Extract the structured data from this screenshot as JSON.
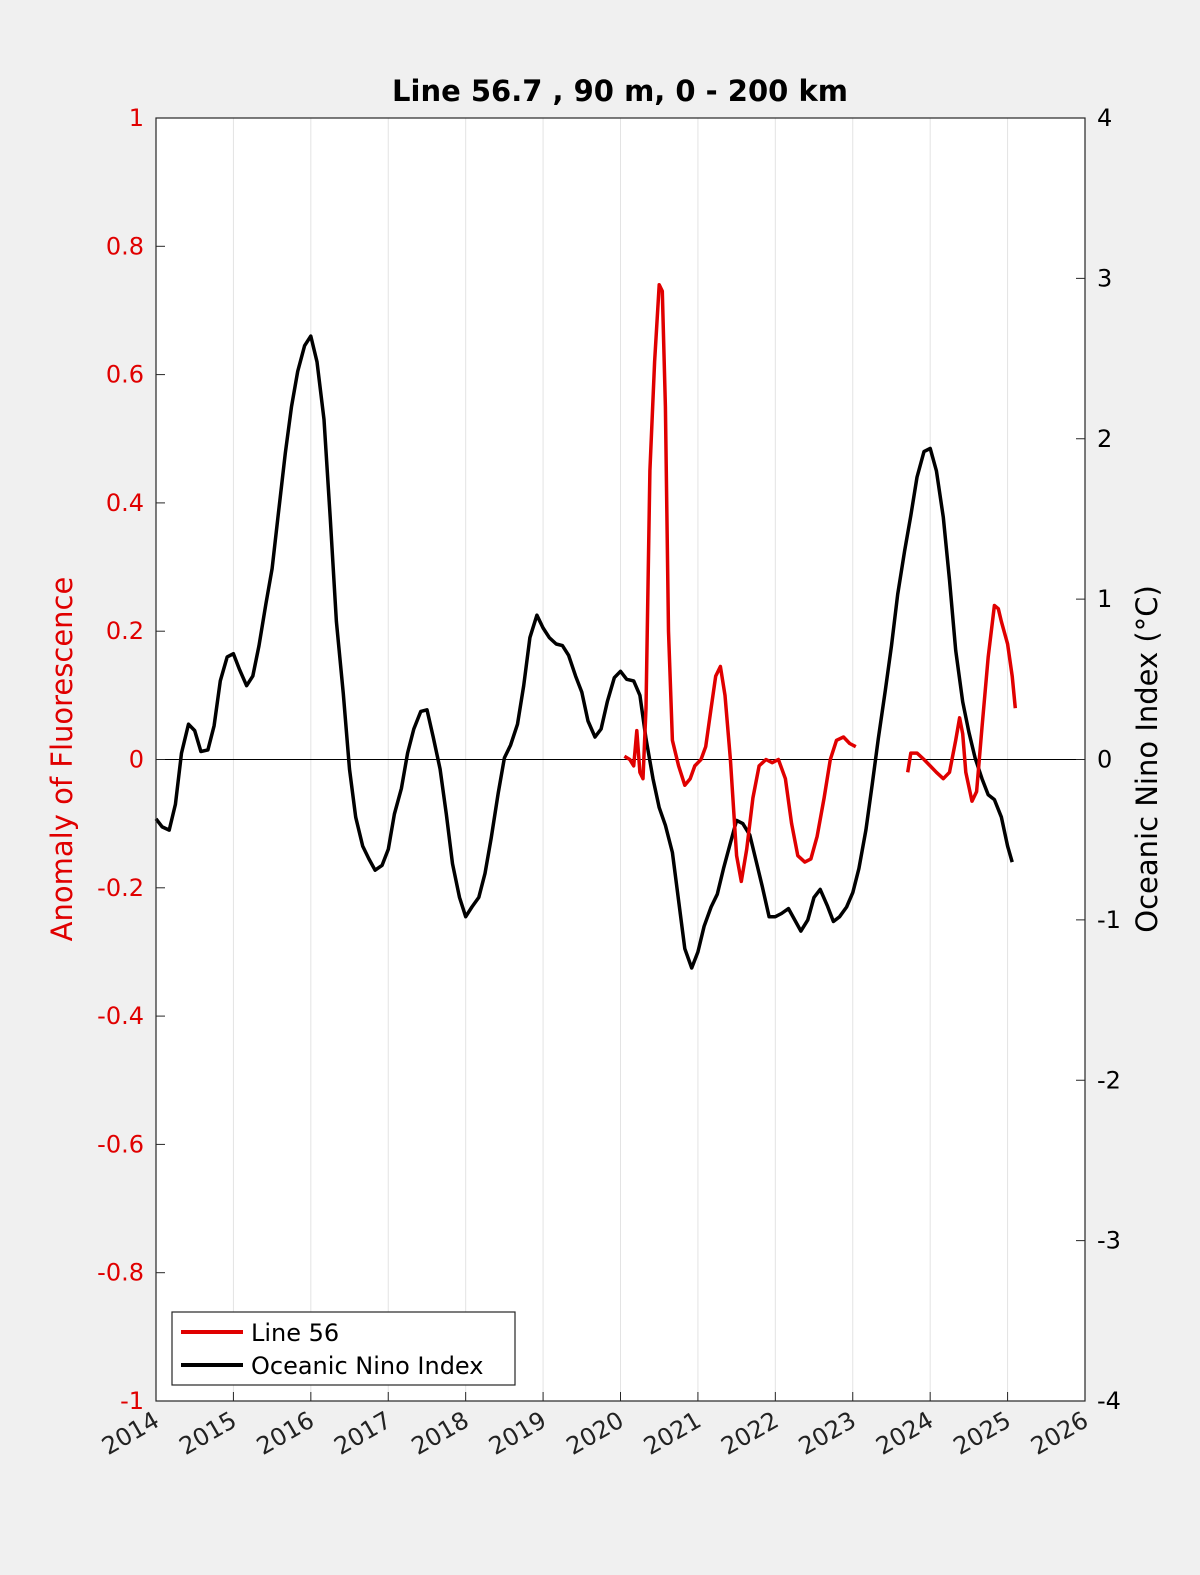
{
  "chart_data": {
    "type": "line",
    "title": "Line 56.7 , 90 m, 0 - 200 km",
    "xlim": [
      2014,
      2026
    ],
    "xticks": [
      "2014",
      "2015",
      "2016",
      "2017",
      "2018",
      "2019",
      "2020",
      "2021",
      "2022",
      "2023",
      "2024",
      "2025",
      "2026"
    ],
    "y_left": {
      "label": "Anomaly of Fluorescence",
      "ylim": [
        -1,
        1
      ],
      "ticks": [
        "1",
        "0.8",
        "0.6",
        "0.4",
        "0.2",
        "0",
        "-0.2",
        "-0.4",
        "-0.6",
        "-0.8",
        "-1"
      ],
      "color": "#e00000"
    },
    "y_right": {
      "label": "Oceanic Nino Index (°C)",
      "ylim": [
        -4,
        4
      ],
      "ticks": [
        "4",
        "3",
        "2",
        "1",
        "0",
        "-1",
        "-2",
        "-3",
        "-4"
      ],
      "color": "#000000"
    },
    "grid": "x-only",
    "zero_line": true,
    "legend_position": "bottom-left",
    "series": [
      {
        "name": "Line 56",
        "axis": "left",
        "color": "#e00000",
        "segments": [
          [
            [
              2020.05,
              0.005
            ],
            [
              2020.12,
              0.0
            ],
            [
              2020.17,
              -0.01
            ],
            [
              2020.21,
              0.045
            ],
            [
              2020.25,
              -0.02
            ],
            [
              2020.29,
              -0.03
            ],
            [
              2020.33,
              0.08
            ],
            [
              2020.38,
              0.45
            ],
            [
              2020.44,
              0.62
            ],
            [
              2020.5,
              0.74
            ],
            [
              2020.54,
              0.73
            ],
            [
              2020.58,
              0.55
            ],
            [
              2020.62,
              0.2
            ],
            [
              2020.67,
              0.03
            ],
            [
              2020.75,
              -0.01
            ],
            [
              2020.83,
              -0.04
            ],
            [
              2020.9,
              -0.03
            ],
            [
              2020.96,
              -0.01
            ],
            [
              2021.04,
              0.0
            ],
            [
              2021.1,
              0.02
            ],
            [
              2021.17,
              0.08
            ],
            [
              2021.23,
              0.13
            ],
            [
              2021.29,
              0.145
            ],
            [
              2021.35,
              0.1
            ],
            [
              2021.42,
              0.0
            ],
            [
              2021.5,
              -0.15
            ],
            [
              2021.56,
              -0.19
            ],
            [
              2021.63,
              -0.14
            ],
            [
              2021.71,
              -0.06
            ],
            [
              2021.79,
              -0.01
            ],
            [
              2021.88,
              0.0
            ],
            [
              2021.96,
              -0.005
            ],
            [
              2022.04,
              0.0
            ],
            [
              2022.13,
              -0.03
            ],
            [
              2022.21,
              -0.1
            ],
            [
              2022.29,
              -0.15
            ],
            [
              2022.38,
              -0.16
            ],
            [
              2022.46,
              -0.155
            ],
            [
              2022.54,
              -0.12
            ],
            [
              2022.63,
              -0.06
            ],
            [
              2022.71,
              0.0
            ],
            [
              2022.79,
              0.03
            ],
            [
              2022.88,
              0.035
            ],
            [
              2022.96,
              0.025
            ],
            [
              2023.04,
              0.02
            ]
          ],
          [
            [
              2023.71,
              -0.02
            ],
            [
              2023.75,
              0.01
            ],
            [
              2023.83,
              0.01
            ],
            [
              2023.92,
              0.0
            ],
            [
              2024.0,
              -0.01
            ],
            [
              2024.08,
              -0.02
            ],
            [
              2024.17,
              -0.03
            ],
            [
              2024.25,
              -0.02
            ],
            [
              2024.33,
              0.03
            ],
            [
              2024.38,
              0.065
            ],
            [
              2024.42,
              0.04
            ],
            [
              2024.46,
              -0.02
            ],
            [
              2024.54,
              -0.065
            ],
            [
              2024.6,
              -0.05
            ],
            [
              2024.67,
              0.05
            ],
            [
              2024.75,
              0.16
            ],
            [
              2024.83,
              0.24
            ],
            [
              2024.88,
              0.235
            ],
            [
              2024.92,
              0.215
            ],
            [
              2025.0,
              0.18
            ],
            [
              2025.06,
              0.13
            ],
            [
              2025.1,
              0.08
            ]
          ]
        ]
      },
      {
        "name": "Oceanic Nino Index",
        "axis": "right",
        "color": "#000000",
        "points": [
          [
            2014.0,
            -0.37
          ],
          [
            2014.08,
            -0.42
          ],
          [
            2014.17,
            -0.44
          ],
          [
            2014.25,
            -0.28
          ],
          [
            2014.33,
            0.04
          ],
          [
            2014.42,
            0.22
          ],
          [
            2014.5,
            0.18
          ],
          [
            2014.58,
            0.05
          ],
          [
            2014.67,
            0.06
          ],
          [
            2014.75,
            0.21
          ],
          [
            2014.83,
            0.49
          ],
          [
            2014.92,
            0.64
          ],
          [
            2015.0,
            0.66
          ],
          [
            2015.08,
            0.56
          ],
          [
            2015.17,
            0.46
          ],
          [
            2015.25,
            0.52
          ],
          [
            2015.33,
            0.71
          ],
          [
            2015.42,
            0.97
          ],
          [
            2015.5,
            1.19
          ],
          [
            2015.58,
            1.53
          ],
          [
            2015.67,
            1.91
          ],
          [
            2015.75,
            2.2
          ],
          [
            2015.83,
            2.42
          ],
          [
            2015.92,
            2.58
          ],
          [
            2016.0,
            2.64
          ],
          [
            2016.08,
            2.48
          ],
          [
            2016.17,
            2.12
          ],
          [
            2016.25,
            1.51
          ],
          [
            2016.33,
            0.86
          ],
          [
            2016.42,
            0.41
          ],
          [
            2016.5,
            -0.06
          ],
          [
            2016.58,
            -0.36
          ],
          [
            2016.67,
            -0.54
          ],
          [
            2016.75,
            -0.62
          ],
          [
            2016.83,
            -0.69
          ],
          [
            2016.92,
            -0.66
          ],
          [
            2017.0,
            -0.56
          ],
          [
            2017.08,
            -0.34
          ],
          [
            2017.17,
            -0.18
          ],
          [
            2017.25,
            0.04
          ],
          [
            2017.33,
            0.19
          ],
          [
            2017.42,
            0.3
          ],
          [
            2017.5,
            0.31
          ],
          [
            2017.58,
            0.14
          ],
          [
            2017.67,
            -0.06
          ],
          [
            2017.75,
            -0.34
          ],
          [
            2017.83,
            -0.65
          ],
          [
            2017.92,
            -0.86
          ],
          [
            2018.0,
            -0.98
          ],
          [
            2018.08,
            -0.92
          ],
          [
            2018.17,
            -0.86
          ],
          [
            2018.25,
            -0.71
          ],
          [
            2018.33,
            -0.49
          ],
          [
            2018.42,
            -0.21
          ],
          [
            2018.5,
            0.01
          ],
          [
            2018.58,
            0.09
          ],
          [
            2018.67,
            0.22
          ],
          [
            2018.75,
            0.46
          ],
          [
            2018.83,
            0.76
          ],
          [
            2018.92,
            0.9
          ],
          [
            2019.0,
            0.82
          ],
          [
            2019.08,
            0.76
          ],
          [
            2019.17,
            0.72
          ],
          [
            2019.25,
            0.71
          ],
          [
            2019.33,
            0.65
          ],
          [
            2019.42,
            0.52
          ],
          [
            2019.5,
            0.42
          ],
          [
            2019.58,
            0.24
          ],
          [
            2019.67,
            0.14
          ],
          [
            2019.75,
            0.19
          ],
          [
            2019.83,
            0.36
          ],
          [
            2019.92,
            0.51
          ],
          [
            2020.0,
            0.55
          ],
          [
            2020.08,
            0.5
          ],
          [
            2020.17,
            0.49
          ],
          [
            2020.25,
            0.4
          ],
          [
            2020.33,
            0.13
          ],
          [
            2020.42,
            -0.12
          ],
          [
            2020.5,
            -0.3
          ],
          [
            2020.58,
            -0.41
          ],
          [
            2020.67,
            -0.58
          ],
          [
            2020.75,
            -0.88
          ],
          [
            2020.83,
            -1.18
          ],
          [
            2020.92,
            -1.3
          ],
          [
            2021.0,
            -1.2
          ],
          [
            2021.08,
            -1.04
          ],
          [
            2021.17,
            -0.92
          ],
          [
            2021.25,
            -0.84
          ],
          [
            2021.33,
            -0.68
          ],
          [
            2021.42,
            -0.52
          ],
          [
            2021.5,
            -0.38
          ],
          [
            2021.58,
            -0.4
          ],
          [
            2021.67,
            -0.47
          ],
          [
            2021.75,
            -0.63
          ],
          [
            2021.83,
            -0.79
          ],
          [
            2021.92,
            -0.98
          ],
          [
            2022.0,
            -0.98
          ],
          [
            2022.08,
            -0.96
          ],
          [
            2022.17,
            -0.93
          ],
          [
            2022.25,
            -1.0
          ],
          [
            2022.33,
            -1.07
          ],
          [
            2022.42,
            -1.0
          ],
          [
            2022.5,
            -0.86
          ],
          [
            2022.58,
            -0.81
          ],
          [
            2022.67,
            -0.91
          ],
          [
            2022.75,
            -1.01
          ],
          [
            2022.83,
            -0.98
          ],
          [
            2022.92,
            -0.92
          ],
          [
            2023.0,
            -0.83
          ],
          [
            2023.08,
            -0.68
          ],
          [
            2023.17,
            -0.44
          ],
          [
            2023.25,
            -0.16
          ],
          [
            2023.33,
            0.13
          ],
          [
            2023.42,
            0.43
          ],
          [
            2023.5,
            0.71
          ],
          [
            2023.58,
            1.03
          ],
          [
            2023.67,
            1.3
          ],
          [
            2023.75,
            1.52
          ],
          [
            2023.83,
            1.76
          ],
          [
            2023.92,
            1.92
          ],
          [
            2024.0,
            1.94
          ],
          [
            2024.08,
            1.8
          ],
          [
            2024.17,
            1.51
          ],
          [
            2024.25,
            1.12
          ],
          [
            2024.33,
            0.68
          ],
          [
            2024.42,
            0.36
          ],
          [
            2024.5,
            0.17
          ],
          [
            2024.58,
            0.01
          ],
          [
            2024.67,
            -0.12
          ],
          [
            2024.75,
            -0.22
          ],
          [
            2024.83,
            -0.25
          ],
          [
            2024.92,
            -0.36
          ],
          [
            2025.0,
            -0.54
          ],
          [
            2025.06,
            -0.64
          ]
        ]
      }
    ]
  }
}
